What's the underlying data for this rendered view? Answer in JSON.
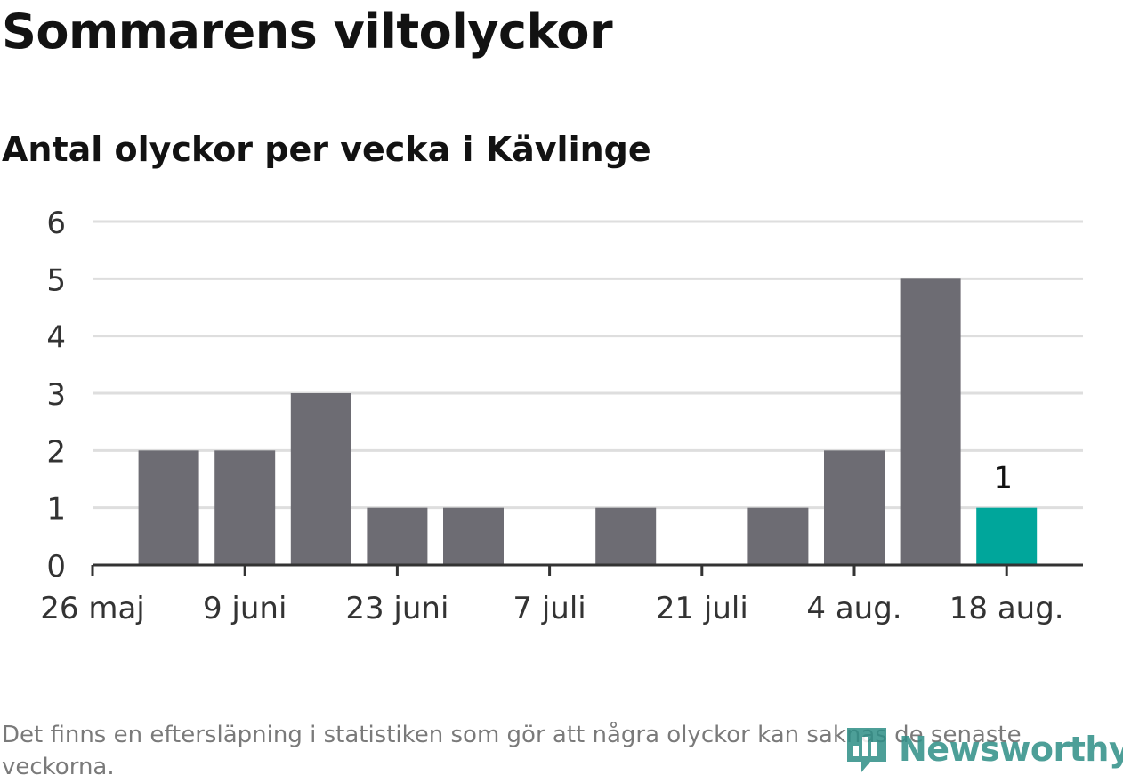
{
  "title": "Sommarens viltolyckor",
  "subtitle": "Antal olyckor per vecka i Kävlinge",
  "footnote": "Det finns en eftersläpning i statistiken som gör att några olyckor kan saknas de senaste veckorna.",
  "logo": {
    "text": "Newsworthy",
    "icon": "chart-bubble-icon"
  },
  "colors": {
    "bar": "#6d6c73",
    "highlight": "#00a69b",
    "grid": "#dedede",
    "axis": "#333333",
    "logo": "#2f8f87"
  },
  "chart_data": {
    "type": "bar",
    "categories": [
      "2 juni",
      "9 juni",
      "16 juni",
      "23 juni",
      "30 juni",
      "7 juli",
      "14 juli",
      "21 juli",
      "28 juli",
      "4 aug.",
      "11 aug.",
      "18 aug."
    ],
    "values": [
      2,
      2,
      3,
      1,
      1,
      0,
      1,
      0,
      1,
      2,
      5,
      1
    ],
    "highlight_index": 11,
    "data_labels": [
      {
        "index": 11,
        "text": "1"
      }
    ],
    "x_tick_labels": [
      "26 maj",
      "9 juni",
      "23 juni",
      "7 juli",
      "21 juli",
      "4 aug.",
      "18 aug."
    ],
    "y_ticks": [
      0,
      1,
      2,
      3,
      4,
      5,
      6
    ],
    "ylim": [
      0,
      6
    ],
    "grid": true,
    "xlabel": "",
    "ylabel": ""
  }
}
